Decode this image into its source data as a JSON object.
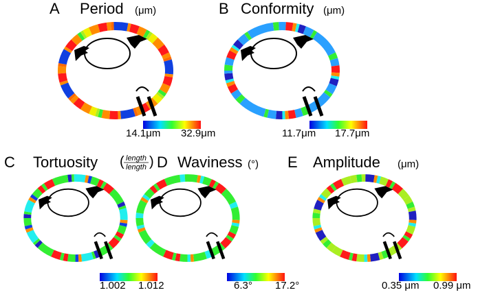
{
  "panels": [
    {
      "letter": "A",
      "title": "Period",
      "unit": "(μm)",
      "colorbar": {
        "min": "14.1μm",
        "max": "32.9μm"
      }
    },
    {
      "letter": "B",
      "title": "Conformity",
      "unit": "(μm)",
      "colorbar": {
        "min": "11.7μm",
        "max": "17.7μm"
      }
    },
    {
      "letter": "C",
      "title": "Tortuosity",
      "unit": {
        "numerator": "length",
        "denominator": "length"
      },
      "colorbar": {
        "min": "1.002",
        "max": "1.012"
      }
    },
    {
      "letter": "D",
      "title": "Waviness",
      "unit": "(°)",
      "colorbar": {
        "min": "6.3°",
        "max": "17.2°"
      }
    },
    {
      "letter": "E",
      "title": "Amplitude",
      "unit": "(μm)",
      "colorbar": {
        "min": "0.35 μm",
        "max": "0.99 μm"
      }
    }
  ]
}
